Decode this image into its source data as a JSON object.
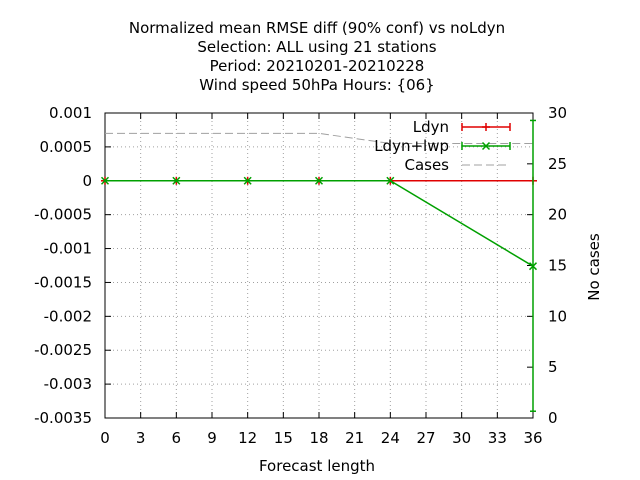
{
  "chart_data": {
    "type": "line",
    "title_lines": [
      "Normalized mean RMSE diff (90% conf) vs noLdyn",
      "Selection: ALL using    21 stations",
      "Period: 20210201-20210228",
      "Wind speed 50hPa   Hours: {06}"
    ],
    "xlabel": "Forecast length",
    "ylabel": "",
    "y2label": "No cases",
    "xlim": [
      0,
      36
    ],
    "ylim": [
      -0.0035,
      0.001
    ],
    "y2lim": [
      0,
      30
    ],
    "xticks": [
      0,
      3,
      6,
      9,
      12,
      15,
      18,
      21,
      24,
      27,
      30,
      33,
      36
    ],
    "yticks": [
      0.001,
      0.0005,
      0,
      -0.0005,
      -0.001,
      -0.0015,
      -0.002,
      -0.0025,
      -0.003,
      -0.0035
    ],
    "ytick_labels": [
      "0.001",
      "0.0005",
      "0",
      "-0.0005",
      "-0.001",
      "-0.0015",
      "-0.002",
      "-0.0025",
      "-0.003",
      "-0.0035"
    ],
    "y2ticks": [
      0,
      5,
      10,
      15,
      20,
      25,
      30
    ],
    "grid": true,
    "legend_position": "top-right",
    "series": [
      {
        "name": "Ldyn",
        "color": "#e00000",
        "axis": "y",
        "marker": "plus-errorbar",
        "x": [
          0,
          6,
          12,
          18,
          24,
          36
        ],
        "y": [
          0,
          0,
          0,
          0,
          0,
          0
        ]
      },
      {
        "name": "Ldyn+lwp",
        "color": "#00a000",
        "axis": "y",
        "marker": "x-errorbar",
        "x": [
          0,
          6,
          12,
          18,
          24,
          36
        ],
        "y": [
          0,
          0,
          0,
          0,
          0,
          -0.00126
        ],
        "error_low": [
          0,
          0,
          0,
          0,
          0,
          -0.0034
        ],
        "error_high": [
          0,
          0,
          0,
          0,
          0,
          0.00089
        ]
      },
      {
        "name": "Cases",
        "color": "#a0a0a0",
        "axis": "y2",
        "style": "dashed",
        "x": [
          0,
          6,
          12,
          18,
          24,
          36
        ],
        "y": [
          28,
          28,
          28,
          28,
          27,
          27
        ]
      }
    ]
  }
}
